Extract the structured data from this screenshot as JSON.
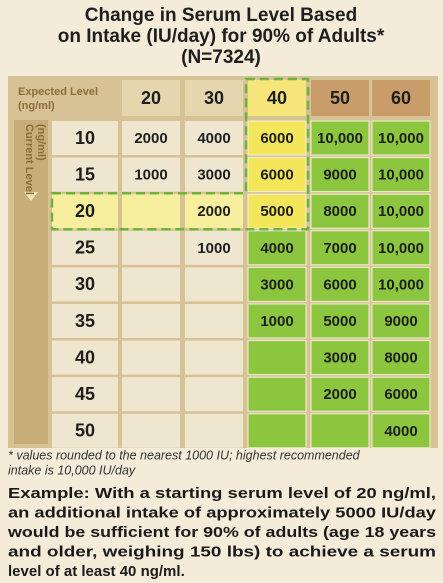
{
  "title_lines": [
    "Change in Serum Level Based",
    "on Intake (IU/day) for 90% of Adults*",
    "(N=7324)"
  ],
  "table": {
    "column_header": [
      "Expected Level",
      "(ng/ml)"
    ],
    "row_header": [
      "Current Level",
      "(ng/ml)"
    ],
    "columns": [
      "20",
      "30",
      "40",
      "50",
      "60"
    ],
    "rows": [
      {
        "label": "10",
        "cells": [
          "2000",
          "4000",
          "6000",
          "10,000",
          "10,000"
        ]
      },
      {
        "label": "15",
        "cells": [
          "1000",
          "3000",
          "6000",
          "9000",
          "10,000"
        ]
      },
      {
        "label": "20",
        "cells": [
          null,
          "2000",
          "5000",
          "8000",
          "10,000"
        ]
      },
      {
        "label": "25",
        "cells": [
          null,
          "1000",
          "4000",
          "7000",
          "10,000"
        ]
      },
      {
        "label": "30",
        "cells": [
          null,
          null,
          "3000",
          "6000",
          "10,000"
        ]
      },
      {
        "label": "35",
        "cells": [
          null,
          null,
          "1000",
          "5000",
          "9000"
        ]
      },
      {
        "label": "40",
        "cells": [
          null,
          null,
          null,
          "3000",
          "8000"
        ]
      },
      {
        "label": "45",
        "cells": [
          null,
          null,
          null,
          "2000",
          "6000"
        ]
      },
      {
        "label": "50",
        "cells": [
          null,
          null,
          null,
          null,
          "4000"
        ]
      }
    ]
  },
  "footnote_lines": [
    "* values rounded to the nearest 1000 IU; highest recommended",
    "intake is 10,000 IU/day"
  ],
  "example_lines": [
    "Example: With a starting serum level of 20 ng/ml,",
    "an additional intake of approximately 5000 IU/day",
    "would be sufficient for 90% of adults (age 18 years",
    "and older, weighing 150 lbs) to achieve a serum",
    "level of at least 40 ng/ml."
  ]
}
